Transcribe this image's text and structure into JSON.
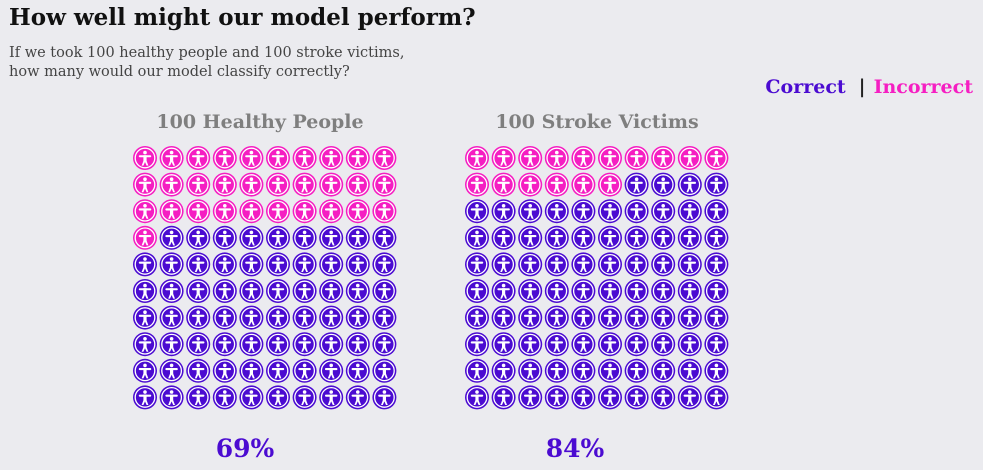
{
  "header": {
    "title": "How well might our model perform?",
    "subtitle_line1": "If we took 100 healthy people and 100 stroke victims,",
    "subtitle_line2": "how many would our model classify correctly?"
  },
  "legend": {
    "correct_label": "Correct",
    "separator": "|",
    "incorrect_label": "Incorrect"
  },
  "colors": {
    "correct": "#4b0bd1",
    "incorrect": "#f51ec2",
    "background": "#ebebef",
    "panel_title": "#7f7f7f"
  },
  "icon": "accessibility-person-icon",
  "chart_data": [
    {
      "type": "waffle",
      "title": "100 Healthy People",
      "total": 100,
      "correct": 69,
      "incorrect": 31,
      "percent_label": "69%",
      "grid": [
        10,
        10
      ]
    },
    {
      "type": "waffle",
      "title": "100 Stroke Victims",
      "total": 100,
      "correct": 84,
      "incorrect": 16,
      "percent_label": "84%",
      "grid": [
        10,
        10
      ]
    }
  ]
}
